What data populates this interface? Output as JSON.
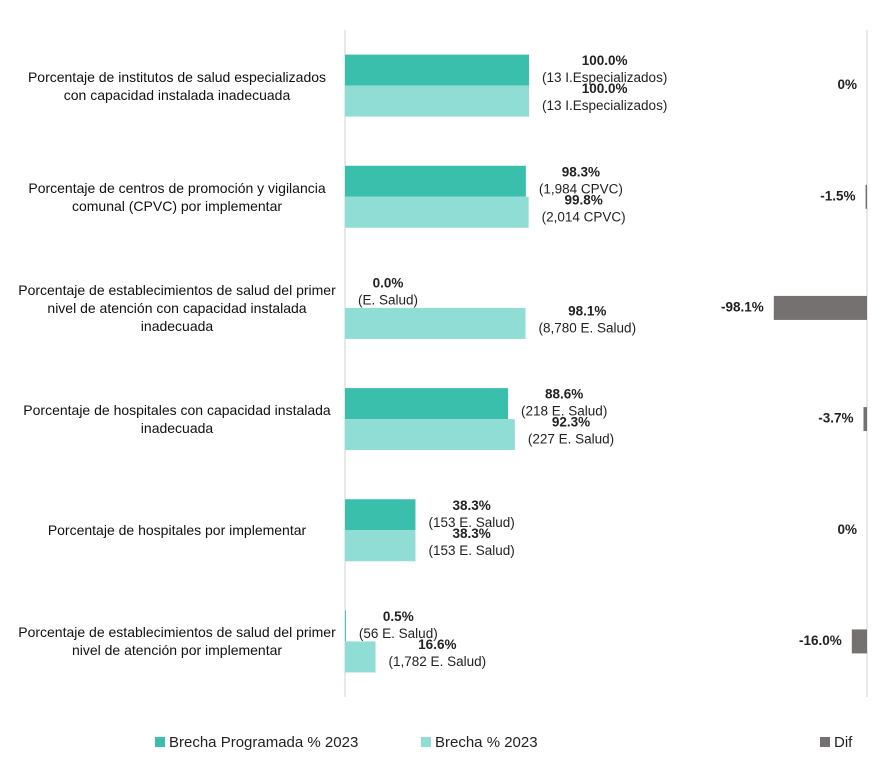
{
  "chart_data": {
    "type": "grouped-bar-with-difference",
    "categories": [
      "Porcentaje de institutos de salud especializados con capacidad instalada inadecuada",
      "Porcentaje de centros de promoción y vigilancia comunal (CPVC) por implementar",
      "Porcentaje de establecimientos de salud del primer nivel de atención con capacidad instalada inadecuada",
      "Porcentaje de hospitales con capacidad instalada inadecuada",
      "Porcentaje de hospitales por implementar",
      "Porcentaje de establecimientos de salud del primer nivel de atención por implementar"
    ],
    "series": [
      {
        "name": "Brecha Programada % 2023",
        "color": "#3bbfad",
        "values": [
          100,
          98.3,
          0,
          88.6,
          38.3,
          0.5
        ],
        "value_labels": [
          "100.0%",
          "98.3%",
          "0.0%",
          "88.6%",
          "38.3%",
          "0.5%"
        ],
        "detail_labels": [
          "(13 I.Especializados)",
          "(1,984 CPVC)",
          "(E. Salud)",
          "(218 E. Salud)",
          "(153 E. Salud)",
          "(56 E. Salud)"
        ]
      },
      {
        "name": "Brecha % 2023",
        "color": "#8fddd4",
        "values": [
          100,
          99.8,
          98.1,
          92.3,
          38.3,
          16.6
        ],
        "value_labels": [
          "100.0%",
          "99.8%",
          "98.1%",
          "92.3%",
          "38.3%",
          "16.6%"
        ],
        "detail_labels": [
          "(13 I.Especializados)",
          "(2,014 CPVC)",
          "(8,780 E. Salud)",
          "(227 E. Salud)",
          "(153 E. Salud)",
          "(1,782 E. Salud)"
        ]
      },
      {
        "name": "Dif",
        "color": "#767171",
        "axis": "x2",
        "values": [
          0,
          -1.5,
          -98.1,
          -3.7,
          0,
          -16.0
        ],
        "value_labels": [
          "0%",
          "-1.5%",
          "-98.1%",
          "-3.7%",
          "0%",
          "-16.0%"
        ]
      }
    ],
    "xlim": [
      0,
      100
    ],
    "x2lim": [
      -100,
      0
    ]
  }
}
